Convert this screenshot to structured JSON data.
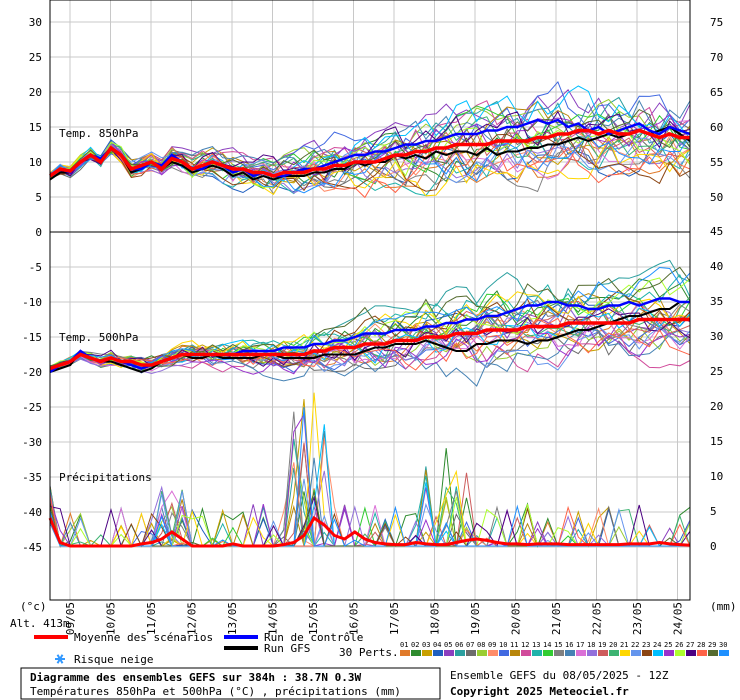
{
  "chart_data": {
    "type": "line",
    "x_dates": [
      "09/05",
      "10/05",
      "11/05",
      "12/05",
      "13/05",
      "14/05",
      "15/05",
      "16/05",
      "17/05",
      "18/05",
      "19/05",
      "20/05",
      "21/05",
      "22/05",
      "23/05",
      "24/05"
    ],
    "left_axis": {
      "unit_label": "(°c)",
      "ticks": [
        30,
        25,
        20,
        15,
        10,
        5,
        0,
        -5,
        -10,
        -15,
        -20,
        -25,
        -30,
        -35,
        -40,
        -45
      ],
      "range": [
        -50,
        30
      ]
    },
    "right_axis_top": {
      "ticks": [
        75,
        70,
        65,
        60,
        55,
        50
      ]
    },
    "right_axis_bottom": {
      "unit_label": "(mm)",
      "ticks": [
        45,
        40,
        35,
        30,
        25,
        20,
        15,
        10,
        5,
        0
      ]
    },
    "panels": [
      {
        "label": "Temp. 850hPa",
        "ylim": [
          0,
          30
        ]
      },
      {
        "label": "Temp. 500hPa",
        "ylim": [
          -25,
          -5
        ]
      },
      {
        "label": "Précipitations",
        "ylim": [
          0,
          45
        ]
      }
    ],
    "mean_850": [
      8,
      9,
      8.7,
      10,
      11,
      10,
      12,
      11,
      9,
      9.5,
      10,
      9,
      10.5,
      10,
      9,
      9.5,
      10,
      9.5,
      9,
      9,
      8.5,
      8.5,
      8,
      8.5,
      8.5,
      8.5,
      9,
      9,
      9.5,
      9.5,
      10,
      10,
      10,
      10.5,
      11,
      11,
      11.5,
      11.5,
      12,
      12,
      12.5,
      12.5,
      12.5,
      12.5,
      13,
      13,
      13,
      13,
      13.5,
      13.5,
      14,
      14,
      14.5,
      14.5,
      14,
      14.5,
      14,
      14,
      14.5,
      14,
      13.5,
      14,
      13.5,
      13.5
    ],
    "ctrl_850": [
      8,
      9,
      8.5,
      10,
      11,
      10.5,
      12,
      11,
      9,
      9,
      10,
      9.5,
      11,
      10,
      9,
      9,
      10,
      9.5,
      8.5,
      9,
      8,
      8.5,
      8,
      8,
      8.5,
      9,
      9,
      9.5,
      10,
      10.5,
      11,
      11,
      11.5,
      11.5,
      12,
      12.5,
      12.5,
      13,
      13,
      13.5,
      14,
      14,
      14,
      14.5,
      14.5,
      15,
      15,
      15.5,
      16,
      15.5,
      16,
      15,
      15.5,
      14.5,
      15,
      14,
      14.5,
      15,
      15.5,
      14.5,
      14,
      15,
      14.5,
      14
    ],
    "gfs_850": [
      7.5,
      8.5,
      8.5,
      10,
      11,
      10,
      12,
      11,
      8.5,
      9,
      10,
      9,
      10,
      9.5,
      8.5,
      9,
      9.5,
      9,
      8,
      8.5,
      7.5,
      8,
      7.5,
      8,
      8,
      8,
      8.5,
      8.5,
      9,
      9,
      10,
      9.5,
      10,
      10,
      11,
      10.5,
      11,
      10.5,
      11.5,
      11,
      11.5,
      11.5,
      11,
      12,
      11,
      11.5,
      11.5,
      12,
      12,
      12.5,
      12.5,
      13,
      13.5,
      13,
      13.5,
      14,
      13.5,
      14,
      14.5,
      14,
      14.5,
      15,
      14,
      13
    ],
    "mean_500": [
      -19.5,
      -19,
      -18.5,
      -17.5,
      -18,
      -18.5,
      -18,
      -18.5,
      -18.5,
      -19,
      -19,
      -18.5,
      -18,
      -17.5,
      -17.5,
      -17.5,
      -17.5,
      -17.5,
      -17.5,
      -17.5,
      -17.5,
      -17.5,
      -17.5,
      -17.5,
      -17.5,
      -17.5,
      -17,
      -17,
      -16.5,
      -16.5,
      -16.5,
      -16,
      -16,
      -16,
      -15.5,
      -15.5,
      -15.5,
      -15,
      -15,
      -15,
      -14.5,
      -14.5,
      -14.5,
      -14,
      -14,
      -14,
      -14,
      -13.5,
      -13.5,
      -13.5,
      -13.5,
      -13,
      -13,
      -13,
      -13,
      -13,
      -13,
      -13,
      -12.5,
      -12.5,
      -12.5,
      -12.5,
      -12.5,
      -12.5
    ],
    "ctrl_500": [
      -20,
      -19,
      -18.5,
      -17,
      -18,
      -18.5,
      -18,
      -18.5,
      -19,
      -19.5,
      -19,
      -18.5,
      -18,
      -17.5,
      -17.5,
      -17.5,
      -17.5,
      -17.5,
      -17.5,
      -17,
      -17,
      -17,
      -17,
      -16.5,
      -16.5,
      -16.5,
      -16,
      -16,
      -15.5,
      -15.5,
      -15,
      -14.5,
      -14.5,
      -14.5,
      -14,
      -14,
      -14,
      -13.5,
      -13.5,
      -13,
      -13,
      -12.5,
      -12.5,
      -12,
      -12,
      -11.5,
      -11,
      -10.5,
      -10.5,
      -10,
      -10,
      -10.5,
      -10.5,
      -11,
      -11,
      -10.5,
      -10.5,
      -10,
      -10.5,
      -10,
      -9.5,
      -9.5,
      -10,
      -10
    ],
    "gfs_500": [
      -20,
      -19.5,
      -19,
      -17,
      -18,
      -18.5,
      -18.5,
      -19,
      -19.5,
      -20,
      -19.5,
      -18.5,
      -18,
      -17.5,
      -18,
      -18,
      -17.5,
      -18,
      -18,
      -18,
      -18,
      -17.5,
      -17.5,
      -18,
      -18,
      -18,
      -18,
      -17.5,
      -17.5,
      -17.5,
      -17.5,
      -17,
      -16.5,
      -16.5,
      -16,
      -16,
      -16,
      -15.5,
      -16,
      -16.5,
      -17,
      -17,
      -16,
      -16,
      -15.5,
      -15.5,
      -15.5,
      -16,
      -15.5,
      -15.5,
      -15,
      -14.5,
      -14,
      -14,
      -13.5,
      -13,
      -12.5,
      -12,
      -12,
      -11.5,
      -11,
      -11,
      -10,
      -10
    ],
    "mean_precip": [
      4,
      0.5,
      0,
      0,
      0,
      0,
      0,
      0,
      0,
      0.3,
      0.5,
      1,
      2,
      1,
      0,
      0,
      0,
      0,
      0.3,
      0,
      0,
      0,
      0,
      0.2,
      0.5,
      1.5,
      4,
      3,
      1.5,
      1,
      2,
      1,
      0.5,
      0.3,
      0.2,
      0.2,
      0.5,
      0.3,
      0.2,
      0.2,
      0.5,
      0.8,
      1,
      0.8,
      0.5,
      0.3,
      0.3,
      0.2,
      0.3,
      0.3,
      0.3,
      0.2,
      0.2,
      0.2,
      0.2,
      0.2,
      0.2,
      0.3,
      0.3,
      0.3,
      0.5,
      0.3,
      0.2,
      0.1
    ],
    "members": 30,
    "member_colors": [
      "#e07a2a",
      "#2e8b2e",
      "#c8a000",
      "#1f5fbf",
      "#8b3fbf",
      "#2a9f9f",
      "#6c6c6c",
      "#9acd32",
      "#ff8c69",
      "#4169e1",
      "#b8860b",
      "#d14b9b",
      "#20b2aa",
      "#32cd32",
      "#808080",
      "#4682b4",
      "#da70d6",
      "#9370db",
      "#cd5c5c",
      "#3cb371",
      "#ffd700",
      "#6495ed",
      "#8b4513",
      "#00bfff",
      "#9932cc",
      "#adff2f",
      "#4b0082",
      "#ff6347",
      "#556b2f",
      "#1e90ff"
    ]
  },
  "labels": {
    "alt": "Alt. 413m",
    "legend_mean": "Moyenne des scénarios",
    "legend_ctrl": "Run de contrôle",
    "legend_gfs": "Run GFS",
    "legend_snow": "Risque neige",
    "perts_label": "30 Perts.",
    "perts_numbers": [
      "01",
      "02",
      "03",
      "04",
      "05",
      "06",
      "07",
      "08",
      "09",
      "10",
      "11",
      "12",
      "13",
      "14",
      "15",
      "16",
      "17",
      "18",
      "19",
      "20",
      "21",
      "22",
      "23",
      "24",
      "25",
      "26",
      "27",
      "28",
      "29",
      "30"
    ],
    "title_main": "Diagramme des ensembles GEFS sur 384h : 38.7N 0.3W",
    "title_sub": "Températures 850hPa et 500hPa (°C) , précipitations (mm)",
    "ensemble_info": "Ensemble GEFS du 08/05/2025 - 12Z",
    "copyright": "Copyright 2025 Meteociel.fr"
  },
  "colors": {
    "mean": "#ff0000",
    "control": "#0000ff",
    "gfs": "#000000",
    "grid": "#c8c8c8",
    "snow": "#3399ff"
  }
}
